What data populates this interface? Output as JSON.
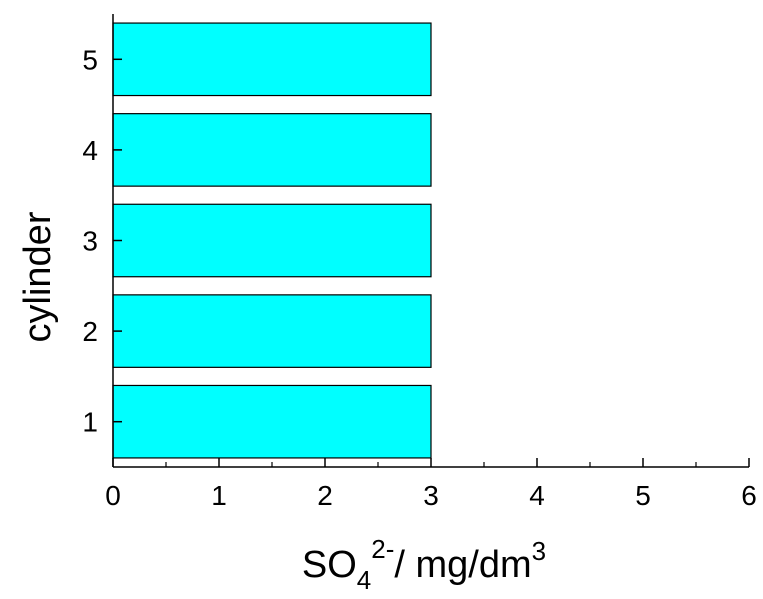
{
  "chart_data": {
    "type": "bar",
    "orientation": "horizontal",
    "categories": [
      "1",
      "2",
      "3",
      "4",
      "5"
    ],
    "values": [
      3,
      3,
      3,
      3,
      3
    ],
    "bar_color": "#00ffff",
    "bar_edge_color": "#000000",
    "xlabel": {
      "base": "SO",
      "sub": "4",
      "sup": "2-",
      "rest": "/ mg/dm",
      "rest_sup": "3"
    },
    "ylabel": "cylinder",
    "xlim": [
      0,
      6
    ],
    "ylim": [
      0.5,
      5.5
    ],
    "xticks": [
      "0",
      "1",
      "2",
      "3",
      "4",
      "5",
      "6"
    ],
    "yticks": [
      "1",
      "2",
      "3",
      "4",
      "5"
    ],
    "grid": false,
    "legend": false
  }
}
